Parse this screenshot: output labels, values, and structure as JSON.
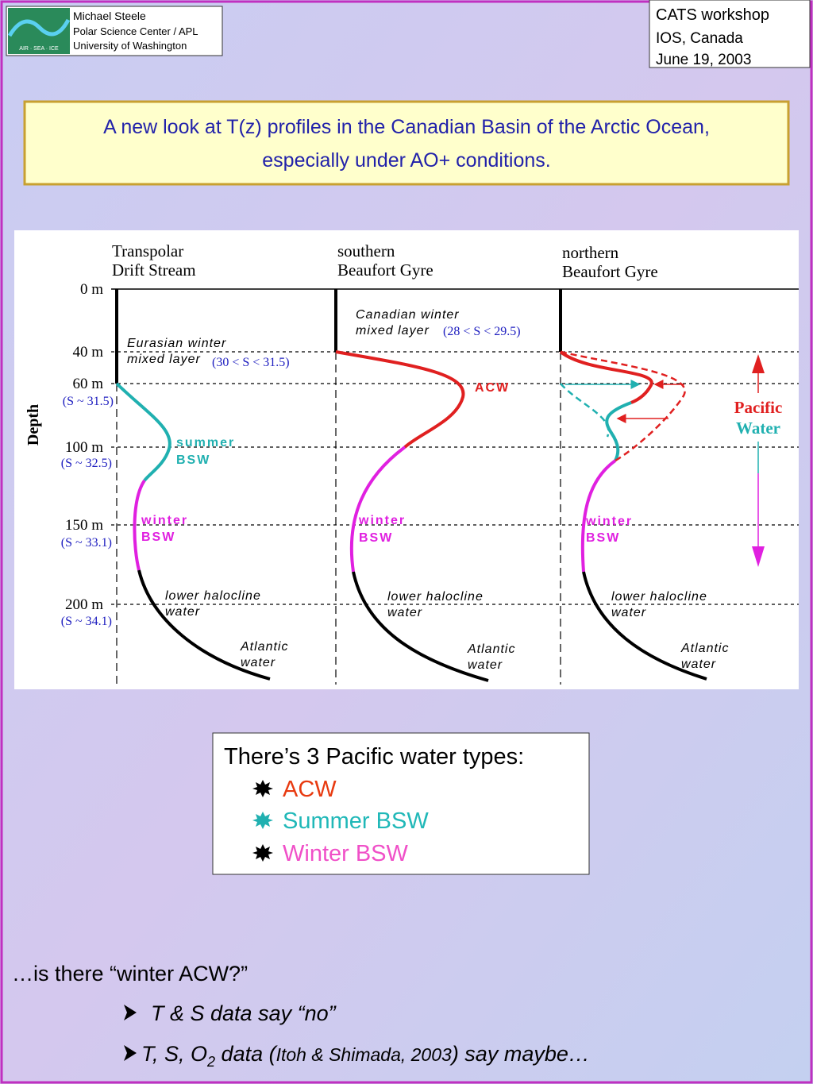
{
  "header": {
    "author": [
      "Michael Steele",
      "Polar Science Center / APL",
      "University of Washington"
    ],
    "logo_text": "AIR · SEA · ICE",
    "event": [
      "CATS workshop",
      "IOS, Canada",
      "June 19, 2003"
    ]
  },
  "title": [
    "A new look at T(z) profiles in the Canadian Basin of the Arctic Ocean,",
    "especially under AO+ conditions."
  ],
  "diagram": {
    "columns": [
      [
        "Transpolar",
        "Drift Stream"
      ],
      [
        "southern",
        "Beaufort Gyre"
      ],
      [
        "northern",
        "Beaufort Gyre"
      ]
    ],
    "axis_label": "Depth",
    "depths": [
      "0 m",
      "40 m",
      "60 m",
      "100 m",
      "150 m",
      "200 m"
    ],
    "salinities": [
      "(S ~ 31.5)",
      "(S ~ 32.5)",
      "(S ~ 33.1)",
      "(S ~ 34.1)"
    ],
    "col1": {
      "mixed": [
        "Eurasian winter",
        "mixed layer"
      ],
      "mixed_s": "(30 < S < 31.5)",
      "summer": [
        "summer",
        "BSW"
      ],
      "winter": [
        "winter",
        "BSW"
      ],
      "lower": [
        "lower halocline",
        "water"
      ],
      "atlantic": [
        "Atlantic",
        "water"
      ]
    },
    "col2": {
      "mixed": [
        "Canadian winter",
        "mixed layer"
      ],
      "mixed_s": "(28 < S < 29.5)",
      "acw": "ACW",
      "winter": [
        "winter",
        "BSW"
      ],
      "lower": [
        "lower halocline",
        "water"
      ],
      "atlantic": [
        "Atlantic",
        "water"
      ]
    },
    "col3": {
      "winter": [
        "winter",
        "BSW"
      ],
      "lower": [
        "lower halocline",
        "water"
      ],
      "atlantic": [
        "Atlantic",
        "water"
      ]
    },
    "pacific": [
      "Pacific",
      "Water"
    ]
  },
  "legend": {
    "heading": "There’s 3 Pacific water types:",
    "items": [
      "ACW",
      "Summer BSW",
      "Winter BSW"
    ]
  },
  "footer": {
    "question": "…is there “winter ACW?”",
    "line2": "T & S data say “no”",
    "line3": [
      "T, S, O",
      "2",
      " data (",
      "Itoh & Shimada, 2003",
      ") say maybe…"
    ]
  }
}
